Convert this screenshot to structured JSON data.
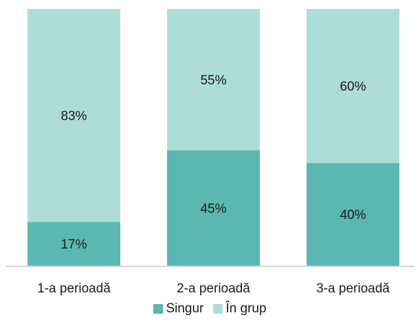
{
  "chart_data": {
    "type": "bar",
    "stacked": true,
    "percent_stacked": true,
    "categories": [
      "1-a perioadă",
      "2-a perioadă",
      "3-a perioadă"
    ],
    "series": [
      {
        "name": "Singur",
        "values": [
          17,
          45,
          40
        ],
        "labels": [
          "17%",
          "45%",
          "40%"
        ],
        "color": "#5bb8b0"
      },
      {
        "name": "În grup",
        "values": [
          83,
          55,
          60
        ],
        "labels": [
          "83%",
          "55%",
          "60%"
        ],
        "color": "#aeddd8"
      }
    ],
    "ylim": [
      0,
      100
    ],
    "grid": false,
    "legend_position": "bottom"
  }
}
